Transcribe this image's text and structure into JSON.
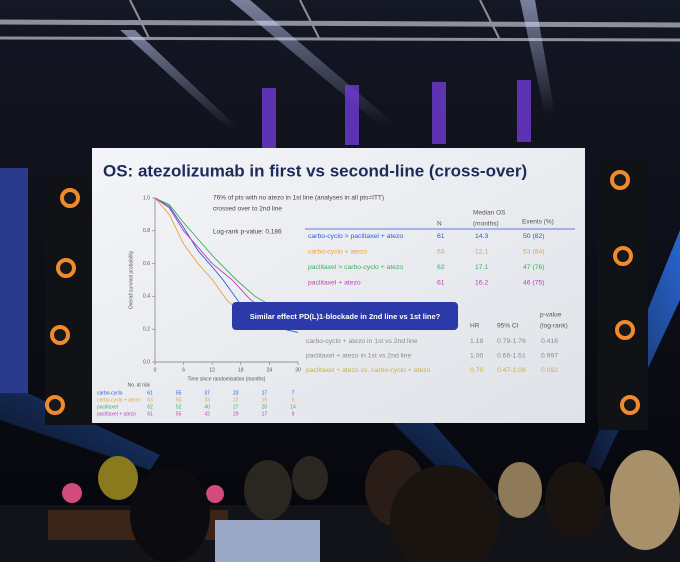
{
  "slide": {
    "title": "OS: atezolizumab in first vs second-line (cross-over)",
    "note": [
      "76% of pts with no atezo in 1st line (analyses in all pts=ITT)",
      "crossed over to 2nd line"
    ],
    "logrank": "Log-rank p-value: 0.186",
    "os_table": {
      "header": [
        "N",
        "Median OS",
        "(months)",
        "Events (%)"
      ],
      "rows": [
        [
          "carbo-cyclo > paclitaxel + atezo",
          "61",
          "14.3",
          "50 (82)"
        ],
        [
          "carbo-cyclo + atezo",
          "63",
          "12.1",
          "53 (84)"
        ],
        [
          "paclitaxel > carbo-cyclo + atezo",
          "62",
          "17.1",
          "47 (76)"
        ],
        [
          "paclitaxel + atezo",
          "61",
          "16.2",
          "46 (75)"
        ]
      ],
      "colors": [
        "#2a5bd7",
        "#e8a33c",
        "#3fae5a",
        "#c23dbb"
      ]
    },
    "banner": "Similar effect PD(L)1-blockade in 2nd line vs 1st line?",
    "hr_table": {
      "header": [
        "HR",
        "95% CI",
        "p-value",
        "(log-rank)"
      ],
      "rows": [
        [
          "carbo-cyclo + atezo in 1st vs 2nd line",
          "1.18",
          "0.79-1.76",
          "0.416"
        ],
        [
          "paclitaxel + atezo in 1st vs 2nd line",
          "1.00",
          "0.66-1.51",
          "0.997"
        ],
        [
          "paclitaxel + atezo vs. carbo-cyclo + atezo",
          "0.70",
          "0.47-1.06",
          "0.092"
        ]
      ],
      "colors": [
        "#8a8a8a",
        "#8a8a8a",
        "#c9b23a"
      ]
    },
    "km_chart": {
      "type": "line",
      "x_label": "Time since randomisation (months)",
      "y_label": "Overall survival probability",
      "xlim": [
        0,
        30
      ],
      "ylim": [
        0,
        1
      ],
      "xticks": [
        0,
        6,
        12,
        18,
        24,
        30
      ],
      "yticks": [
        {
          "value": 0,
          "label": "0.0"
        },
        {
          "value": 0.2,
          "label": "0.2"
        },
        {
          "value": 0.4,
          "label": "0.4"
        },
        {
          "value": 0.6,
          "label": "0.6"
        },
        {
          "value": 0.8,
          "label": "0.8"
        },
        {
          "value": 1,
          "label": "1.0"
        }
      ],
      "series": [
        {
          "color": "#2a5bd7",
          "x": [
            0,
            3,
            6,
            9,
            12,
            14.3,
            18,
            24,
            30
          ],
          "values": [
            1,
            0.95,
            0.82,
            0.68,
            0.58,
            0.5,
            0.35,
            0.22,
            0.18
          ]
        },
        {
          "color": "#e8a33c",
          "x": [
            0,
            3,
            6,
            9,
            12.1,
            15,
            18,
            24,
            30
          ],
          "values": [
            1,
            0.9,
            0.72,
            0.6,
            0.5,
            0.38,
            0.3,
            0.22,
            0.2
          ]
        },
        {
          "color": "#3fae5a",
          "x": [
            0,
            3,
            6,
            9,
            12,
            17.1,
            21,
            24,
            30
          ],
          "values": [
            1,
            0.96,
            0.85,
            0.75,
            0.65,
            0.5,
            0.4,
            0.35,
            0.3
          ]
        },
        {
          "color": "#c23dbb",
          "x": [
            0,
            3,
            6,
            9,
            12,
            16.2,
            20,
            24,
            30
          ],
          "values": [
            1,
            0.94,
            0.8,
            0.7,
            0.6,
            0.5,
            0.38,
            0.3,
            0.26
          ]
        }
      ]
    },
    "at_risk": {
      "title": "No. at risk",
      "rows": [
        {
          "label": "carbo-cyclo",
          "color": "#2a5bd7",
          "counts": [
            "61",
            "55",
            "37",
            "23",
            "17",
            "7"
          ]
        },
        {
          "label": "carbo-cyclo + atezo",
          "color": "#e8a33c",
          "counts": [
            "63",
            "50",
            "33",
            "22",
            "15",
            "6"
          ]
        },
        {
          "label": "paclitaxel",
          "color": "#3fae5a",
          "counts": [
            "62",
            "52",
            "40",
            "27",
            "20",
            "14"
          ]
        },
        {
          "label": "paclitaxel + atezo",
          "color": "#c23dbb",
          "counts": [
            "61",
            "55",
            "42",
            "29",
            "17",
            "9"
          ]
        }
      ]
    }
  }
}
